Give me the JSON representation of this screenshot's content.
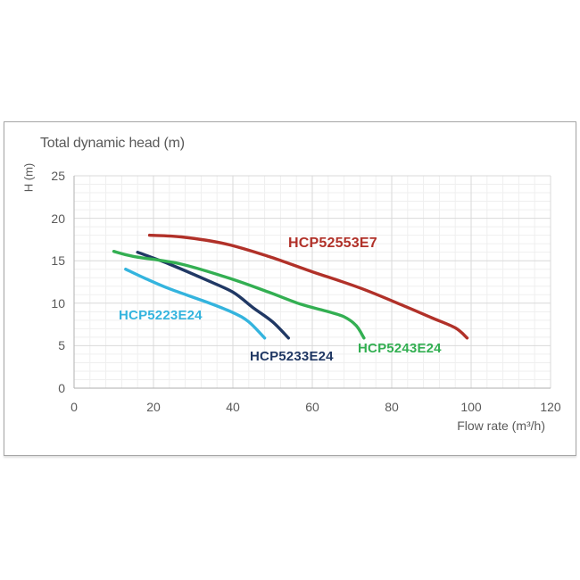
{
  "chart_data": {
    "type": "line",
    "title": "Total dynamic head (m)",
    "ylabel": "H (m)",
    "xlabel": "Flow rate (m³/h)",
    "xlim": [
      0,
      120
    ],
    "ylim": [
      0,
      25
    ],
    "x_ticks": [
      0,
      20,
      40,
      60,
      80,
      100,
      120
    ],
    "y_ticks": [
      0,
      5,
      10,
      15,
      20,
      25
    ],
    "x_minor_step": 4,
    "y_minor_step": 1,
    "grid": true,
    "grid_color_major": "#d9d9d9",
    "grid_color_minor": "#efefef",
    "axis_line_color": "#bdbdbd",
    "axis_text_color": "#595959",
    "legend_position": "inline-labels",
    "series": [
      {
        "name": "HCP52553E7",
        "color": "#b13129",
        "points": [
          [
            19,
            18.0
          ],
          [
            27,
            17.8
          ],
          [
            38,
            17.0
          ],
          [
            49,
            15.5
          ],
          [
            60,
            13.7
          ],
          [
            72,
            11.8
          ],
          [
            83,
            9.7
          ],
          [
            90,
            8.3
          ],
          [
            96,
            7.1
          ],
          [
            99,
            5.9
          ]
        ]
      },
      {
        "name": "HCP5223E24",
        "color": "#34b4de",
        "points": [
          [
            13,
            14.0
          ],
          [
            18,
            12.9
          ],
          [
            24,
            11.7
          ],
          [
            33,
            10.2
          ],
          [
            40,
            8.9
          ],
          [
            44,
            7.8
          ],
          [
            48,
            5.9
          ]
        ]
      },
      {
        "name": "HCP5233E24",
        "color": "#203864",
        "points": [
          [
            16,
            16.0
          ],
          [
            24,
            14.6
          ],
          [
            33,
            12.8
          ],
          [
            40,
            11.3
          ],
          [
            45,
            9.5
          ],
          [
            50,
            7.8
          ],
          [
            54,
            5.9
          ]
        ]
      },
      {
        "name": "HCP5243E24",
        "color": "#33af52",
        "points": [
          [
            10,
            16.1
          ],
          [
            15,
            15.5
          ],
          [
            27,
            14.6
          ],
          [
            40,
            12.8
          ],
          [
            49,
            11.3
          ],
          [
            57,
            9.9
          ],
          [
            64,
            9.0
          ],
          [
            68,
            8.4
          ],
          [
            71,
            7.4
          ],
          [
            73,
            5.9
          ]
        ]
      }
    ]
  }
}
